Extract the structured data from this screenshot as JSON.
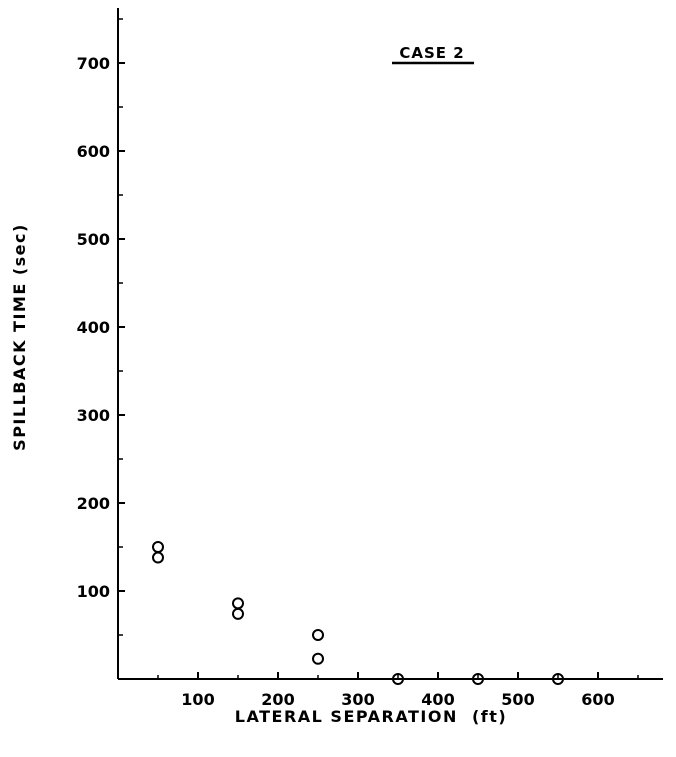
{
  "chart_data": {
    "type": "scatter",
    "title": "CASE 2",
    "xlabel": "LATERAL SEPARATION  (ft)",
    "ylabel": "SPILLBACK TIME (sec)",
    "xlim": [
      0,
      680
    ],
    "ylim": [
      0,
      750
    ],
    "x_ticks": [
      100,
      200,
      300,
      400,
      500,
      600
    ],
    "y_ticks": [
      100,
      200,
      300,
      400,
      500,
      600,
      700
    ],
    "x": [
      50,
      50,
      150,
      150,
      250,
      250,
      350,
      450,
      550
    ],
    "y": [
      150,
      138,
      86,
      74,
      50,
      23,
      0,
      0,
      0
    ],
    "marker": "open-circle",
    "grid": false,
    "colors": {
      "ink": "#000000",
      "background": "#ffffff"
    }
  }
}
